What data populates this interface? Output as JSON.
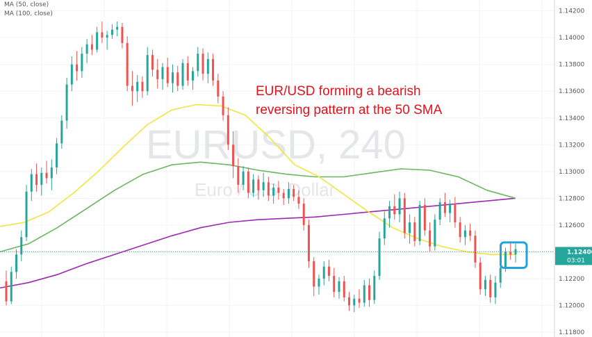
{
  "legend": {
    "ma50": "MA (50, close)",
    "ma100": "MA (100, close)"
  },
  "watermark": {
    "symbol": "EURUSD, 240",
    "description": "Euro / U.S. Dollar"
  },
  "annotation": {
    "line1": "EUR/USD forming a bearish",
    "line2": "reversing pattern at the 50 SMA"
  },
  "price_tag": {
    "value": "1.12400",
    "countdown": "03:01"
  },
  "colors": {
    "up": "#26a69a",
    "down": "#ef5350",
    "ma50": "#f5e33f",
    "ma100": "#6bb65f",
    "ma200": "#9c27b0",
    "last_line": "#26a69a",
    "highlight": "#1ea3dc",
    "annotation": "#e8101a"
  },
  "chart_data": {
    "type": "candlestick",
    "title": "",
    "ylim": [
      1.118,
      1.1425
    ],
    "y_ticks": [
      "1.14200",
      "1.14000",
      "1.13800",
      "1.13600",
      "1.13400",
      "1.13200",
      "1.13000",
      "1.12800",
      "1.12600",
      "1.12400",
      "1.12200",
      "1.12000",
      "1.11800"
    ],
    "candles": [
      [
        1.1218,
        1.1226,
        1.12,
        1.1203
      ],
      [
        1.1203,
        1.1229,
        1.1201,
        1.1225
      ],
      [
        1.1225,
        1.1242,
        1.122,
        1.1238
      ],
      [
        1.1238,
        1.1256,
        1.1233,
        1.1251
      ],
      [
        1.1251,
        1.129,
        1.1248,
        1.1285
      ],
      [
        1.1285,
        1.1302,
        1.1278,
        1.1298
      ],
      [
        1.1298,
        1.1306,
        1.1285,
        1.129
      ],
      [
        1.129,
        1.1303,
        1.1282,
        1.1299
      ],
      [
        1.1299,
        1.1308,
        1.1291,
        1.1295
      ],
      [
        1.1295,
        1.1309,
        1.1286,
        1.1303
      ],
      [
        1.1303,
        1.1325,
        1.1298,
        1.1321
      ],
      [
        1.1321,
        1.1342,
        1.1317,
        1.1338
      ],
      [
        1.1338,
        1.137,
        1.1332,
        1.1365
      ],
      [
        1.1365,
        1.1386,
        1.136,
        1.138
      ],
      [
        1.138,
        1.139,
        1.1368,
        1.1375
      ],
      [
        1.1375,
        1.1393,
        1.137,
        1.1388
      ],
      [
        1.1388,
        1.1399,
        1.1381,
        1.1395
      ],
      [
        1.1395,
        1.1402,
        1.1387,
        1.1391
      ],
      [
        1.1391,
        1.1408,
        1.1389,
        1.1404
      ],
      [
        1.1404,
        1.1412,
        1.1396,
        1.14
      ],
      [
        1.14,
        1.1405,
        1.1391,
        1.1402
      ],
      [
        1.1402,
        1.141,
        1.1399,
        1.1406
      ],
      [
        1.1406,
        1.1412,
        1.1401,
        1.1408
      ],
      [
        1.1408,
        1.1411,
        1.1392,
        1.1396
      ],
      [
        1.1396,
        1.1401,
        1.136,
        1.1364
      ],
      [
        1.1364,
        1.1375,
        1.1349,
        1.136
      ],
      [
        1.136,
        1.1372,
        1.1352,
        1.1367
      ],
      [
        1.1367,
        1.1371,
        1.1355,
        1.136
      ],
      [
        1.136,
        1.1393,
        1.1357,
        1.1387
      ],
      [
        1.1387,
        1.1391,
        1.1371,
        1.1376
      ],
      [
        1.1376,
        1.1384,
        1.1362,
        1.1369
      ],
      [
        1.1369,
        1.1381,
        1.1361,
        1.1378
      ],
      [
        1.1378,
        1.1385,
        1.1363,
        1.1366
      ],
      [
        1.1366,
        1.138,
        1.1359,
        1.1374
      ],
      [
        1.1374,
        1.1379,
        1.136,
        1.1364
      ],
      [
        1.1364,
        1.1384,
        1.1361,
        1.1381
      ],
      [
        1.1381,
        1.1386,
        1.1364,
        1.1368
      ],
      [
        1.1368,
        1.1378,
        1.1361,
        1.1375
      ],
      [
        1.1375,
        1.1393,
        1.1371,
        1.1388
      ],
      [
        1.1388,
        1.1392,
        1.1368,
        1.1373
      ],
      [
        1.1373,
        1.1389,
        1.1366,
        1.1384
      ],
      [
        1.1384,
        1.1388,
        1.1364,
        1.1368
      ],
      [
        1.1368,
        1.1373,
        1.1351,
        1.1356
      ],
      [
        1.1356,
        1.136,
        1.1338,
        1.1342
      ],
      [
        1.1342,
        1.1348,
        1.1316,
        1.132
      ],
      [
        1.132,
        1.133,
        1.1295,
        1.1304
      ],
      [
        1.1304,
        1.131,
        1.1284,
        1.129
      ],
      [
        1.129,
        1.1304,
        1.1286,
        1.13
      ],
      [
        1.13,
        1.1303,
        1.128,
        1.1284
      ],
      [
        1.1284,
        1.1298,
        1.1281,
        1.1294
      ],
      [
        1.1294,
        1.1297,
        1.1279,
        1.1286
      ],
      [
        1.1286,
        1.1299,
        1.1281,
        1.1292
      ],
      [
        1.1292,
        1.1296,
        1.1278,
        1.1282
      ],
      [
        1.1282,
        1.1291,
        1.1276,
        1.1288
      ],
      [
        1.1288,
        1.1293,
        1.1279,
        1.1284
      ],
      [
        1.1284,
        1.1287,
        1.1275,
        1.128
      ],
      [
        1.128,
        1.1292,
        1.1276,
        1.1287
      ],
      [
        1.1287,
        1.129,
        1.1278,
        1.1281
      ],
      [
        1.1281,
        1.1286,
        1.1272,
        1.1276
      ],
      [
        1.1276,
        1.128,
        1.1256,
        1.126
      ],
      [
        1.126,
        1.1264,
        1.1228,
        1.1233
      ],
      [
        1.1233,
        1.1236,
        1.1207,
        1.1214
      ],
      [
        1.1214,
        1.1223,
        1.1208,
        1.122
      ],
      [
        1.122,
        1.1233,
        1.1215,
        1.1229
      ],
      [
        1.1229,
        1.1234,
        1.1218,
        1.1222
      ],
      [
        1.1222,
        1.1228,
        1.1206,
        1.121
      ],
      [
        1.121,
        1.1221,
        1.1205,
        1.1218
      ],
      [
        1.1218,
        1.1222,
        1.1203,
        1.1206
      ],
      [
        1.1206,
        1.121,
        1.1196,
        1.12
      ],
      [
        1.12,
        1.1208,
        1.1195,
        1.1205
      ],
      [
        1.1205,
        1.1212,
        1.1198,
        1.1202
      ],
      [
        1.1202,
        1.1219,
        1.1199,
        1.1215
      ],
      [
        1.1215,
        1.122,
        1.1199,
        1.1204
      ],
      [
        1.1204,
        1.1226,
        1.1201,
        1.1222
      ],
      [
        1.1222,
        1.1255,
        1.1219,
        1.125
      ],
      [
        1.125,
        1.127,
        1.1245,
        1.1265
      ],
      [
        1.1265,
        1.1278,
        1.1258,
        1.1274
      ],
      [
        1.1274,
        1.1283,
        1.1264,
        1.1268
      ],
      [
        1.1268,
        1.1285,
        1.1262,
        1.128
      ],
      [
        1.128,
        1.1284,
        1.125,
        1.1254
      ],
      [
        1.1254,
        1.1268,
        1.1246,
        1.1262
      ],
      [
        1.1262,
        1.1266,
        1.1244,
        1.1248
      ],
      [
        1.1248,
        1.1278,
        1.1245,
        1.1275
      ],
      [
        1.1275,
        1.128,
        1.1252,
        1.1256
      ],
      [
        1.1256,
        1.1262,
        1.124,
        1.1244
      ],
      [
        1.1244,
        1.1268,
        1.1241,
        1.1264
      ],
      [
        1.1264,
        1.128,
        1.126,
        1.1277
      ],
      [
        1.1277,
        1.1284,
        1.1266,
        1.1269
      ],
      [
        1.1269,
        1.1279,
        1.1262,
        1.1276
      ],
      [
        1.1276,
        1.1281,
        1.1258,
        1.1262
      ],
      [
        1.1262,
        1.1266,
        1.1247,
        1.1251
      ],
      [
        1.1251,
        1.126,
        1.1245,
        1.1256
      ],
      [
        1.1256,
        1.1261,
        1.1248,
        1.1252
      ],
      [
        1.1252,
        1.1256,
        1.1228,
        1.1232
      ],
      [
        1.1232,
        1.1236,
        1.1208,
        1.1212
      ],
      [
        1.1212,
        1.1222,
        1.1207,
        1.1219
      ],
      [
        1.1219,
        1.1223,
        1.1202,
        1.1206
      ],
      [
        1.1206,
        1.1222,
        1.1201,
        1.1217
      ],
      [
        1.1217,
        1.123,
        1.1213,
        1.1228
      ],
      [
        1.1228,
        1.1243,
        1.1225,
        1.124
      ],
      [
        1.124,
        1.1247,
        1.1234,
        1.1238
      ],
      [
        1.1238,
        1.1246,
        1.1232,
        1.1242
      ]
    ],
    "ma50": [
      1.1259,
      1.1262,
      1.127,
      1.1284,
      1.13,
      1.1318,
      1.1335,
      1.1346,
      1.135,
      1.1349,
      1.1342,
      1.1325,
      1.1305,
      1.1296,
      1.1283,
      1.127,
      1.1258,
      1.125,
      1.1244,
      1.124,
      1.1238,
      1.1238
    ],
    "ma100": [
      1.124,
      1.1246,
      1.1258,
      1.1272,
      1.1286,
      1.1298,
      1.1305,
      1.1307,
      1.1305,
      1.1301,
      1.1298,
      1.1296,
      1.1296,
      1.1299,
      1.1302,
      1.1301,
      1.1296,
      1.1286,
      1.128
    ],
    "ma200": [
      1.1213,
      1.1217,
      1.1223,
      1.1231,
      1.1238,
      1.1245,
      1.1252,
      1.1258,
      1.1262,
      1.1264,
      1.1265,
      1.1266,
      1.1268,
      1.127,
      1.1272,
      1.1274,
      1.1276,
      1.1278,
      1.128
    ]
  }
}
